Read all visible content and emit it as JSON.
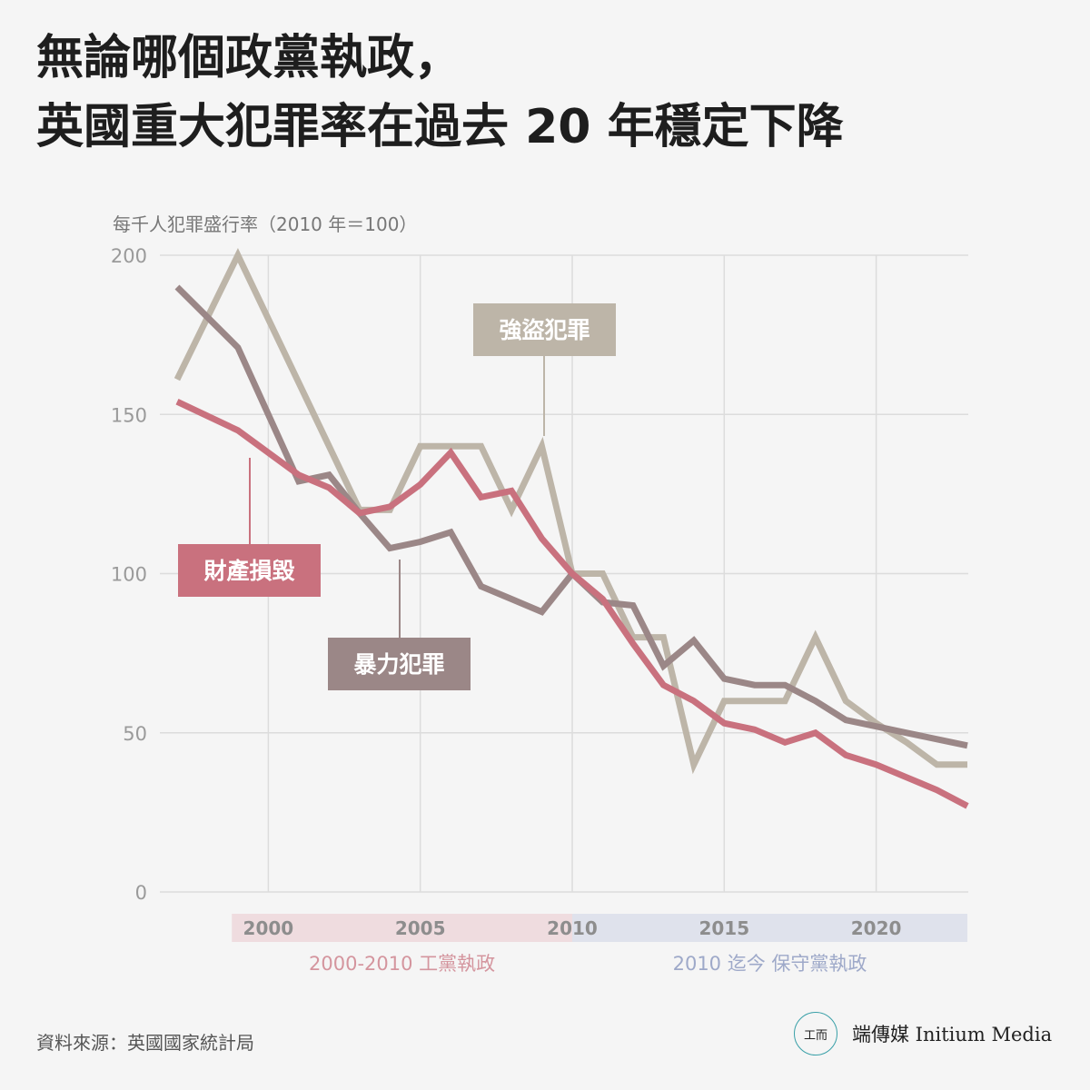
{
  "title": {
    "line1": "無論哪個政黨執政，",
    "line2": "英國重大犯罪率在過去 20 年穩定下降"
  },
  "chart_data": {
    "type": "line",
    "ylabel": "每千人犯罪盛行率（2010 年＝100）",
    "ylim": [
      0,
      200
    ],
    "xlim": [
      1997,
      2023
    ],
    "y_ticks": [
      "0",
      "50",
      "100",
      "150",
      "200"
    ],
    "x_ticks": [
      "2000",
      "2005",
      "2010",
      "2015",
      "2020"
    ],
    "grid": true,
    "series": [
      {
        "name": "強盜犯罪",
        "color": "#bdb5a8",
        "x": [
          1997,
          1999,
          2003,
          2004,
          2005,
          2006,
          2007,
          2008,
          2009,
          2010,
          2011,
          2012,
          2013,
          2014,
          2015,
          2016,
          2017,
          2018,
          2019,
          2020,
          2021,
          2022,
          2023
        ],
        "values": [
          161,
          200,
          120,
          120,
          140,
          140,
          140,
          120,
          140,
          100,
          100,
          80,
          80,
          40,
          60,
          60,
          60,
          80,
          60,
          53,
          47,
          40,
          40
        ]
      },
      {
        "name": "暴力犯罪",
        "color": "#9b8787",
        "x": [
          1997,
          1999,
          2001,
          2002,
          2003,
          2004,
          2005,
          2006,
          2007,
          2008,
          2009,
          2010,
          2011,
          2012,
          2013,
          2014,
          2015,
          2016,
          2017,
          2018,
          2019,
          2020,
          2021,
          2022,
          2023
        ],
        "values": [
          190,
          171,
          129,
          131,
          119,
          108,
          110,
          113,
          96,
          92,
          88,
          100,
          91,
          90,
          71,
          79,
          67,
          65,
          65,
          60,
          54,
          52,
          50,
          48,
          46
        ]
      },
      {
        "name": "財產損毀",
        "color": "#c9717e",
        "x": [
          1997,
          1999,
          2001,
          2002,
          2003,
          2004,
          2005,
          2006,
          2007,
          2008,
          2009,
          2010,
          2011,
          2012,
          2013,
          2014,
          2015,
          2016,
          2017,
          2018,
          2019,
          2020,
          2021,
          2022,
          2023
        ],
        "values": [
          154,
          145,
          131,
          127,
          119,
          121,
          128,
          138,
          124,
          126,
          111,
          100,
          92,
          78,
          65,
          60,
          53,
          51,
          47,
          50,
          43,
          40,
          36,
          32,
          27
        ]
      }
    ],
    "labels": [
      {
        "series": 0,
        "text": "強盜犯罪"
      },
      {
        "series": 1,
        "text": "暴力犯罪"
      },
      {
        "series": 2,
        "text": "財產損毀"
      }
    ],
    "periods": [
      {
        "text": "2000-2010 工黨執政",
        "start": 1998.8,
        "end": 2010,
        "band_color": "#efdcdf",
        "text_color": "#d4959e"
      },
      {
        "text": "2010 迄今 保守黨執政",
        "start": 2010,
        "end": 2023,
        "band_color": "#dfe2ec",
        "text_color": "#9ea9c9"
      }
    ]
  },
  "source": "資料來源：英國國家統計局",
  "logo": {
    "mark": "工而",
    "text": "端傳媒 Initium Media"
  }
}
